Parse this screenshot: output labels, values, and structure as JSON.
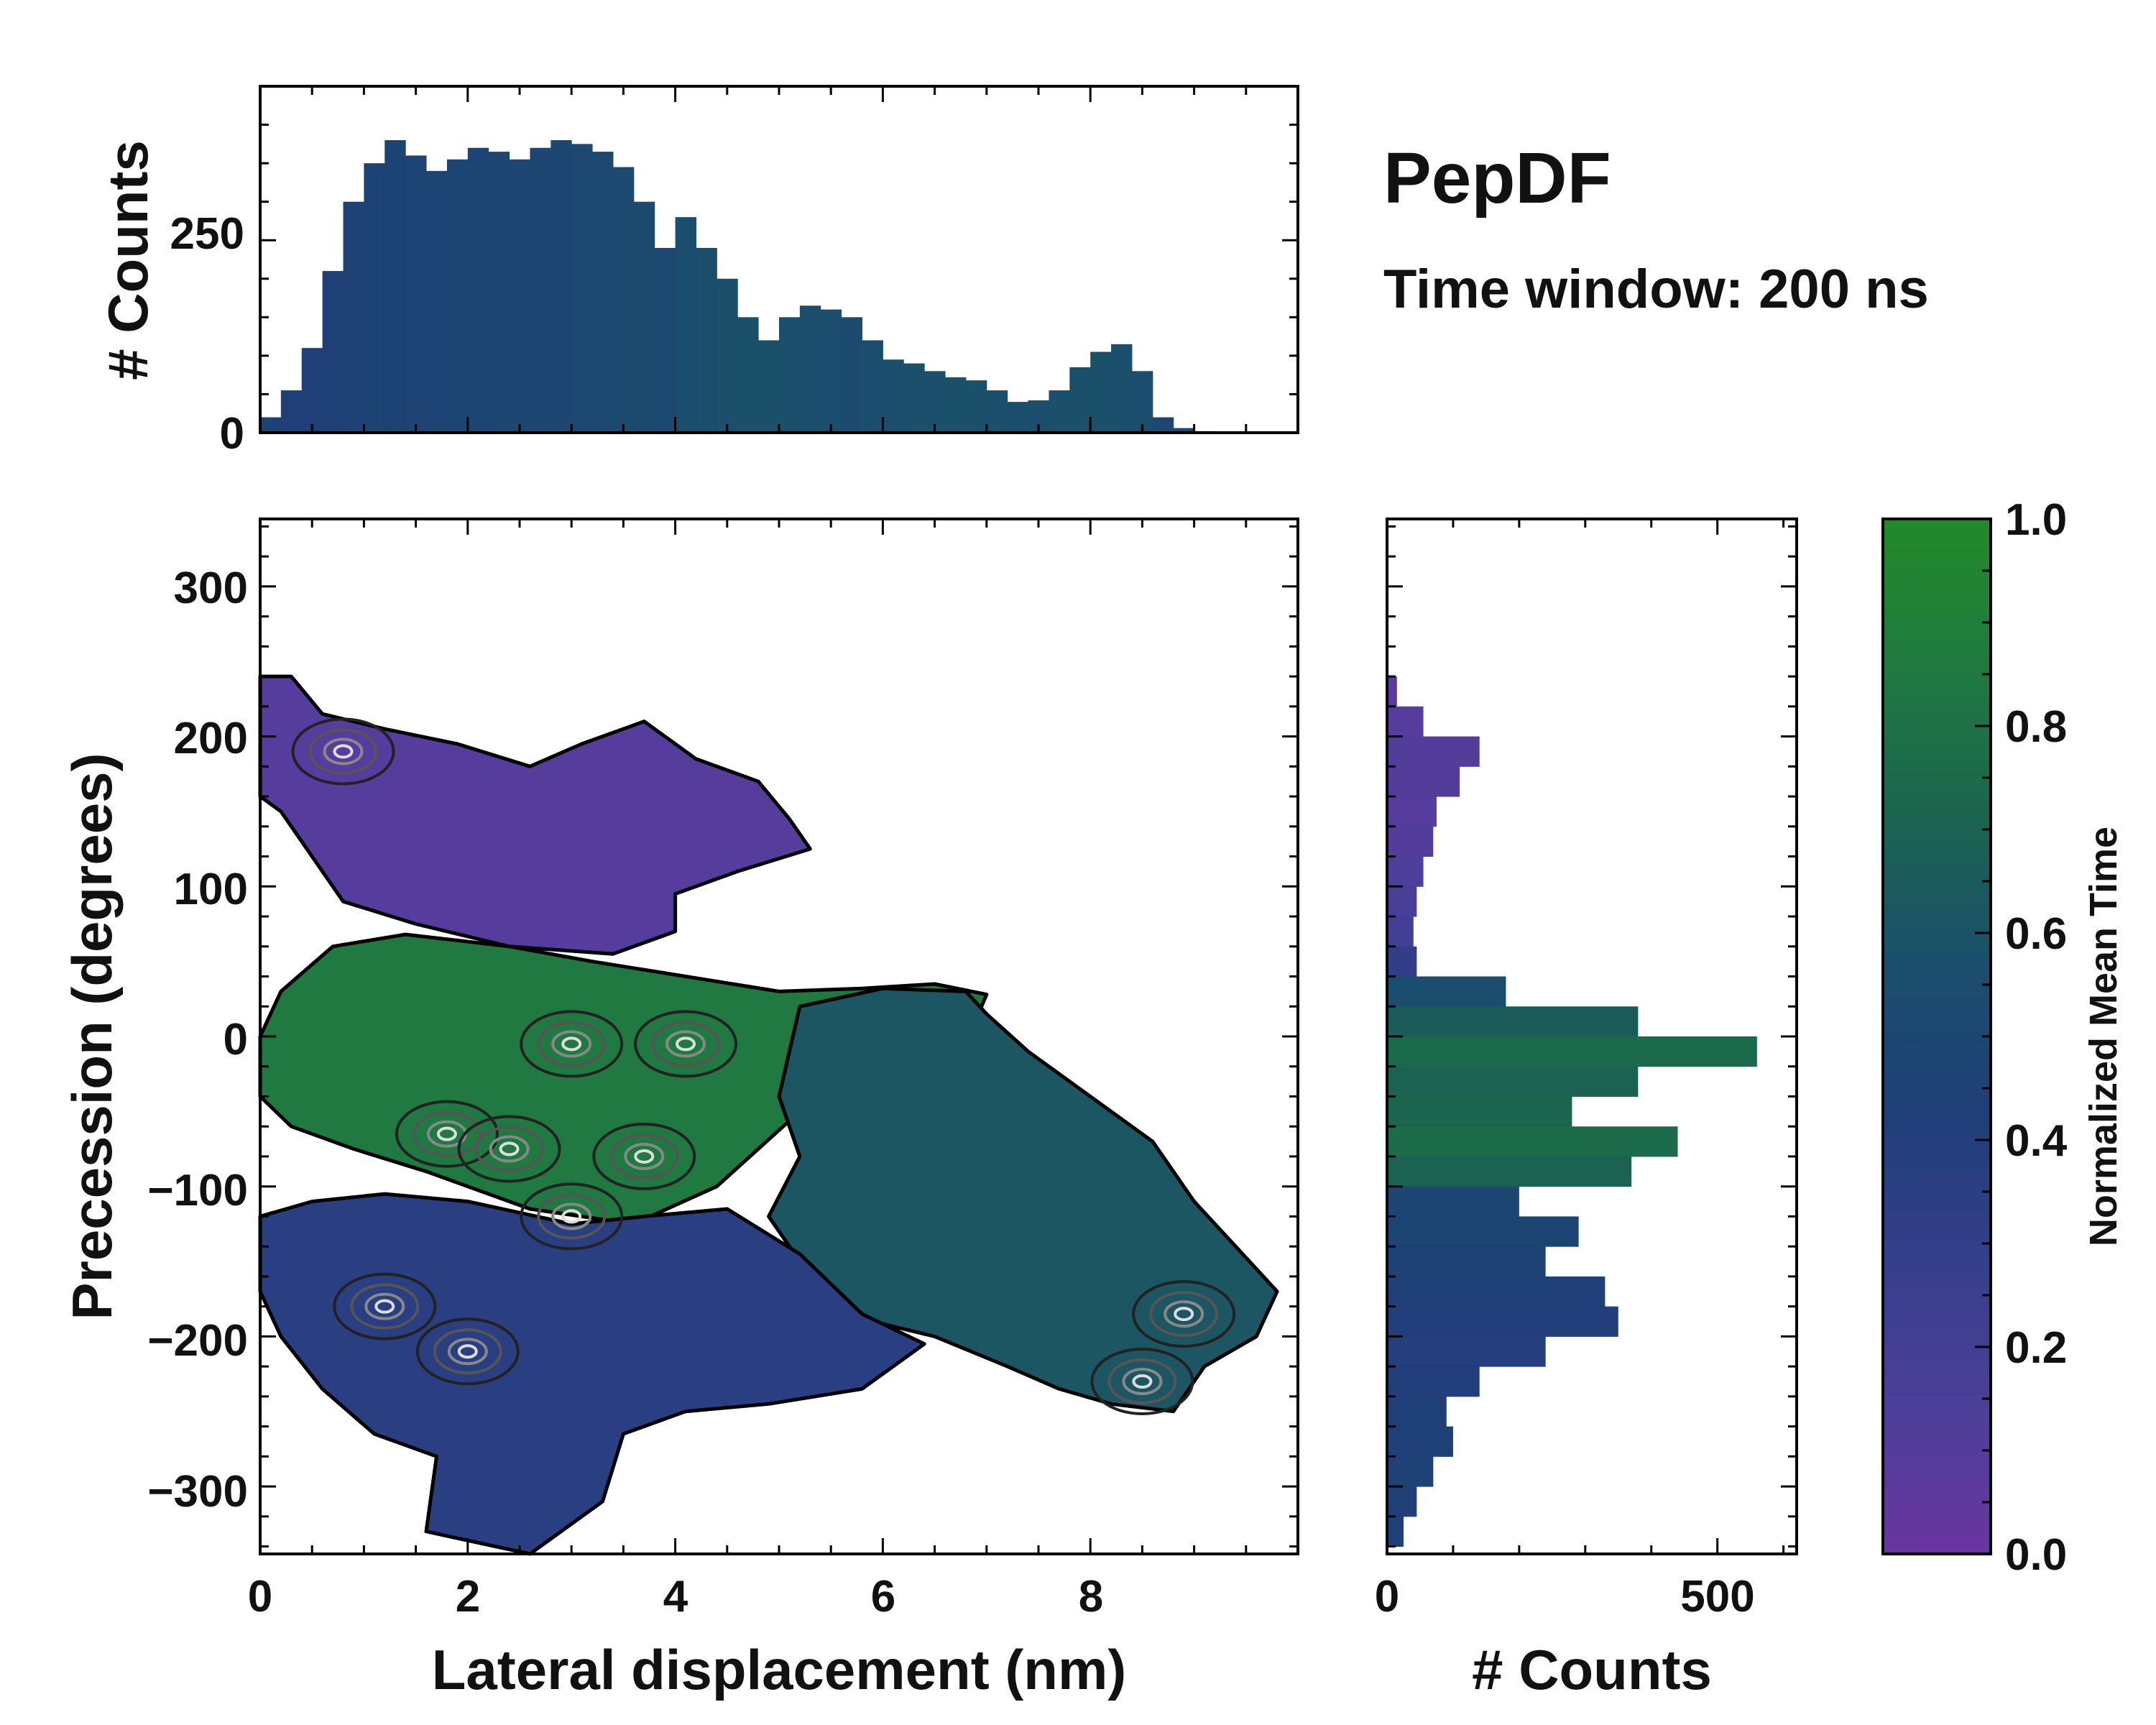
{
  "chart_data": [
    {
      "panel": "top-marginal",
      "type": "bar",
      "ylabel": "# Counts",
      "xlim": [
        0,
        10
      ],
      "ylim": [
        0,
        450
      ],
      "y_ticks": [
        0,
        250
      ],
      "series": [
        {
          "name": "Lateral displacement counts",
          "color_by": "Normalized Mean Time"
        }
      ],
      "x": [
        0.1,
        0.3,
        0.5,
        0.7,
        0.9,
        1.1,
        1.3,
        1.5,
        1.7,
        1.9,
        2.1,
        2.3,
        2.5,
        2.7,
        2.9,
        3.1,
        3.3,
        3.5,
        3.7,
        3.9,
        4.1,
        4.3,
        4.5,
        4.7,
        4.9,
        5.1,
        5.3,
        5.5,
        5.7,
        5.9,
        6.1,
        6.3,
        6.5,
        6.7,
        6.9,
        7.1,
        7.3,
        7.5,
        7.7,
        7.9,
        8.1,
        8.3,
        8.5,
        8.7,
        8.9,
        9.1,
        9.3,
        9.5,
        9.7
      ],
      "values": [
        20,
        55,
        110,
        210,
        300,
        350,
        380,
        360,
        340,
        355,
        370,
        365,
        355,
        370,
        380,
        375,
        365,
        345,
        300,
        240,
        280,
        240,
        200,
        150,
        120,
        150,
        165,
        160,
        150,
        120,
        95,
        90,
        80,
        72,
        68,
        55,
        40,
        42,
        55,
        85,
        105,
        115,
        80,
        20,
        6,
        2,
        0,
        0,
        0
      ],
      "mean_time": [
        0.45,
        0.42,
        0.43,
        0.44,
        0.45,
        0.46,
        0.46,
        0.47,
        0.47,
        0.48,
        0.48,
        0.49,
        0.5,
        0.5,
        0.5,
        0.51,
        0.51,
        0.52,
        0.53,
        0.52,
        0.55,
        0.56,
        0.57,
        0.58,
        0.58,
        0.57,
        0.56,
        0.55,
        0.54,
        0.55,
        0.56,
        0.57,
        0.57,
        0.58,
        0.58,
        0.57,
        0.56,
        0.56,
        0.57,
        0.58,
        0.58,
        0.57,
        0.55,
        0.5,
        0.5,
        0.5,
        0.5,
        0.5,
        0.5
      ]
    },
    {
      "panel": "main-heatmap",
      "type": "heatmap",
      "xlabel": "Lateral displacement (nm)",
      "ylabel": "Precession (degrees)",
      "xlim": [
        0,
        10
      ],
      "ylim": [
        -345,
        345
      ],
      "x_ticks": [
        0,
        2,
        4,
        6,
        8
      ],
      "y_ticks": [
        -300,
        -200,
        -100,
        0,
        100,
        200,
        300
      ],
      "colorbar": "Normalized Mean Time",
      "regions": [
        {
          "name": "upper-lobe",
          "mean_time": 0.1,
          "polygon": [
            [
              0,
              240
            ],
            [
              0.3,
              240
            ],
            [
              0.6,
              215
            ],
            [
              1.2,
              205
            ],
            [
              1.9,
              195
            ],
            [
              2.6,
              180
            ],
            [
              3.1,
              195
            ],
            [
              3.7,
              210
            ],
            [
              4.2,
              185
            ],
            [
              4.8,
              170
            ],
            [
              5.1,
              145
            ],
            [
              5.3,
              125
            ],
            [
              4.6,
              110
            ],
            [
              4.0,
              95
            ],
            [
              4.0,
              70
            ],
            [
              3.4,
              55
            ],
            [
              2.4,
              60
            ],
            [
              1.5,
              75
            ],
            [
              0.8,
              90
            ],
            [
              0.5,
              120
            ],
            [
              0.2,
              150
            ],
            [
              0,
              160
            ]
          ]
        },
        {
          "name": "central-band",
          "mean_time": 0.85,
          "polygon": [
            [
              0,
              0
            ],
            [
              0.2,
              30
            ],
            [
              0.7,
              60
            ],
            [
              1.4,
              68
            ],
            [
              2.4,
              60
            ],
            [
              3.2,
              50
            ],
            [
              4.1,
              40
            ],
            [
              5.0,
              30
            ],
            [
              5.8,
              32
            ],
            [
              6.5,
              35
            ],
            [
              7.0,
              28
            ],
            [
              6.8,
              -5
            ],
            [
              6.0,
              -20
            ],
            [
              5.2,
              -50
            ],
            [
              4.4,
              -100
            ],
            [
              3.6,
              -125
            ],
            [
              2.6,
              -115
            ],
            [
              1.6,
              -90
            ],
            [
              0.9,
              -75
            ],
            [
              0.3,
              -60
            ],
            [
              0,
              -40
            ]
          ]
        },
        {
          "name": "right-arm",
          "mean_time": 0.62,
          "polygon": [
            [
              5.2,
              20
            ],
            [
              6.0,
              32
            ],
            [
              6.8,
              30
            ],
            [
              7.0,
              15
            ],
            [
              7.4,
              -10
            ],
            [
              8.0,
              -40
            ],
            [
              8.6,
              -70
            ],
            [
              9.0,
              -110
            ],
            [
              9.4,
              -140
            ],
            [
              9.8,
              -170
            ],
            [
              9.6,
              -200
            ],
            [
              9.1,
              -220
            ],
            [
              8.8,
              -250
            ],
            [
              8.2,
              -245
            ],
            [
              7.7,
              -235
            ],
            [
              7.2,
              -220
            ],
            [
              6.5,
              -200
            ],
            [
              5.9,
              -190
            ],
            [
              5.3,
              -160
            ],
            [
              4.9,
              -120
            ],
            [
              5.2,
              -80
            ],
            [
              5.0,
              -40
            ]
          ]
        },
        {
          "name": "lower-lobe",
          "mean_time": 0.36,
          "polygon": [
            [
              0,
              -120
            ],
            [
              0.5,
              -110
            ],
            [
              1.2,
              -105
            ],
            [
              2.0,
              -110
            ],
            [
              3.0,
              -125
            ],
            [
              3.7,
              -120
            ],
            [
              4.5,
              -115
            ],
            [
              5.2,
              -145
            ],
            [
              5.8,
              -185
            ],
            [
              6.4,
              -205
            ],
            [
              5.8,
              -235
            ],
            [
              4.9,
              -245
            ],
            [
              4.1,
              -250
            ],
            [
              3.5,
              -265
            ],
            [
              3.3,
              -310
            ],
            [
              2.6,
              -345
            ],
            [
              1.6,
              -330
            ],
            [
              1.7,
              -280
            ],
            [
              1.1,
              -265
            ],
            [
              0.6,
              -235
            ],
            [
              0.2,
              -200
            ],
            [
              0,
              -170
            ]
          ]
        }
      ],
      "contour_peaks": [
        [
          0.8,
          190
        ],
        [
          1.2,
          -180
        ],
        [
          2.0,
          -210
        ],
        [
          3.0,
          -5
        ],
        [
          3.0,
          -120
        ],
        [
          3.7,
          -80
        ],
        [
          1.8,
          -65
        ],
        [
          2.4,
          -75
        ],
        [
          8.9,
          -185
        ],
        [
          8.5,
          -230
        ],
        [
          4.1,
          -5
        ]
      ]
    },
    {
      "panel": "right-marginal",
      "type": "bar",
      "orientation": "horizontal",
      "xlabel": "# Counts",
      "xlim": [
        0,
        620
      ],
      "ylim": [
        -345,
        345
      ],
      "x_ticks": [
        0,
        500
      ],
      "y": [
        230,
        210,
        190,
        170,
        150,
        130,
        110,
        90,
        70,
        50,
        30,
        10,
        -10,
        -30,
        -50,
        -70,
        -90,
        -110,
        -130,
        -150,
        -170,
        -190,
        -210,
        -230,
        -250,
        -270,
        -290,
        -310,
        -330
      ],
      "values": [
        15,
        55,
        140,
        110,
        75,
        70,
        55,
        45,
        40,
        45,
        180,
        380,
        560,
        380,
        280,
        440,
        370,
        200,
        290,
        240,
        330,
        350,
        240,
        140,
        90,
        100,
        70,
        45,
        25
      ],
      "mean_time": [
        0.08,
        0.1,
        0.12,
        0.12,
        0.1,
        0.12,
        0.14,
        0.16,
        0.2,
        0.3,
        0.55,
        0.66,
        0.75,
        0.7,
        0.72,
        0.76,
        0.7,
        0.5,
        0.48,
        0.45,
        0.42,
        0.4,
        0.38,
        0.4,
        0.42,
        0.44,
        0.45,
        0.44,
        0.43
      ]
    },
    {
      "panel": "colorbar",
      "type": "colorbar",
      "label": "Normalized Mean Time",
      "range": [
        0.0,
        1.0
      ],
      "tick_labels": [
        "0.0",
        "0.2",
        "0.4",
        "0.6",
        "0.8",
        "1.0"
      ],
      "colormap": [
        "#6a35a0",
        "#4d3f9a",
        "#343f8a",
        "#1e3f78",
        "#1b4f6c",
        "#1b6450",
        "#1f7a40",
        "#238a2a"
      ]
    }
  ],
  "annotations": {
    "title": "PepDF",
    "subtitle": "Time window: 200 ns"
  }
}
